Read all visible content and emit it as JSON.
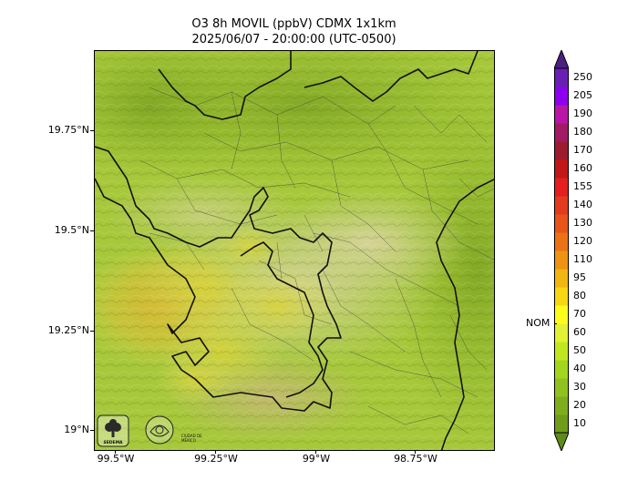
{
  "title": {
    "line1": "O3 8h MOVIL (ppbV) CDMX 1x1km",
    "line2": "2025/06/07 - 20:00:00 (UTC-0500)"
  },
  "map": {
    "lat_labels": [
      "19.75°N",
      "19.5°N",
      "19.25°N",
      "19°N"
    ],
    "lon_labels": [
      "99.5°W",
      "99.25°W",
      "99°W",
      "98.75°W"
    ],
    "logos": [
      {
        "name": "sedema-logo",
        "text": "SEDEMA"
      },
      {
        "name": "cdmx-logo",
        "text": "CIUDAD DE MÉXICO"
      }
    ]
  },
  "colorbar": {
    "ticks": [
      "10",
      "20",
      "30",
      "40",
      "50",
      "60",
      "70",
      "80",
      "95",
      "110",
      "120",
      "130",
      "140",
      "155",
      "160",
      "170",
      "180",
      "190",
      "205",
      "250"
    ],
    "colors": [
      "#6f9c1a",
      "#7fae1c",
      "#8fc21f",
      "#a3d51e",
      "#c1e81f",
      "#e0f233",
      "#fdfd1c",
      "#f7d713",
      "#f1b60f",
      "#ee9312",
      "#ec7314",
      "#e95418",
      "#e33b1e",
      "#e51e1e",
      "#c11717",
      "#9c1c2d",
      "#a31b63",
      "#b916a8",
      "#8c00f0",
      "#6a1fb4"
    ],
    "extend_high_color": "#4a2080",
    "extend_low_color": "#5e8a18",
    "nom_label": "NOM",
    "nom_value": 65
  }
}
